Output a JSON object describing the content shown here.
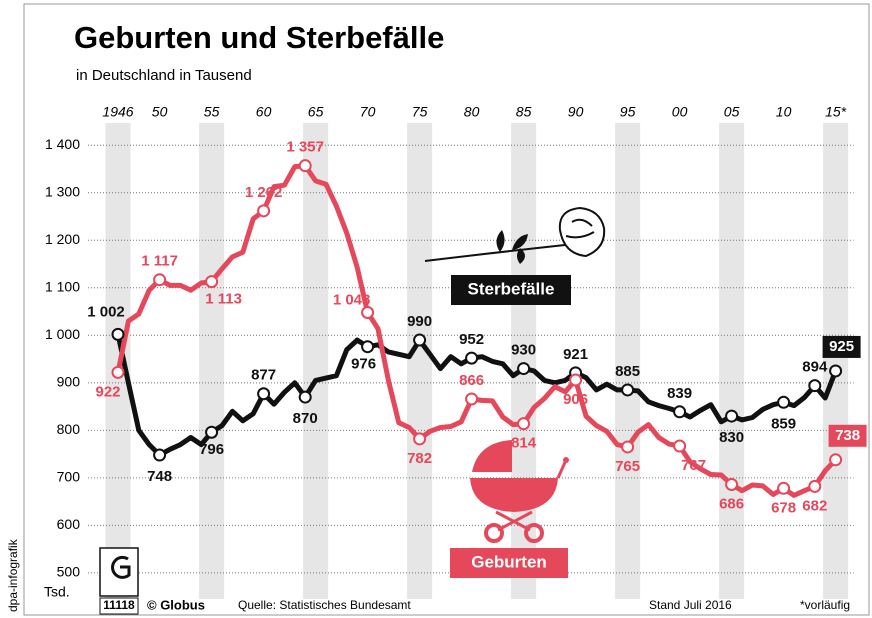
{
  "chart_data": {
    "type": "line",
    "title": "Geburten und Sterbefälle",
    "subtitle": "in Deutschland in Tausend",
    "y_unit": "Tsd.",
    "credit": "dpa-infografik",
    "graphic_number": "11118",
    "publisher": "© Globus",
    "source": "Quelle: Statistisches Bundesamt",
    "date": "Stand Juli 2016",
    "footnote": "*vorläufig",
    "x": [
      1946,
      1947,
      1948,
      1949,
      1950,
      1951,
      1952,
      1953,
      1954,
      1955,
      1956,
      1957,
      1958,
      1959,
      1960,
      1961,
      1962,
      1963,
      1964,
      1965,
      1966,
      1967,
      1968,
      1969,
      1970,
      1971,
      1972,
      1973,
      1974,
      1975,
      1976,
      1977,
      1978,
      1979,
      1980,
      1981,
      1982,
      1983,
      1984,
      1985,
      1986,
      1987,
      1988,
      1989,
      1990,
      1991,
      1992,
      1993,
      1994,
      1995,
      1996,
      1997,
      1998,
      1999,
      2000,
      2001,
      2002,
      2003,
      2004,
      2005,
      2006,
      2007,
      2008,
      2009,
      2010,
      2011,
      2012,
      2013,
      2014,
      2015
    ],
    "series": [
      {
        "name": "Sterbefälle",
        "color": "#111111",
        "values": [
          1002,
          900,
          800,
          770,
          748,
          760,
          770,
          785,
          770,
          796,
          810,
          840,
          820,
          835,
          877,
          855,
          880,
          900,
          870,
          905,
          910,
          915,
          970,
          990,
          976,
          980,
          965,
          960,
          955,
          990,
          960,
          930,
          955,
          940,
          952,
          955,
          945,
          940,
          915,
          930,
          925,
          905,
          900,
          905,
          921,
          911,
          885,
          897,
          885,
          885,
          883,
          860,
          852,
          846,
          839,
          828,
          842,
          854,
          818,
          830,
          822,
          827,
          844,
          854,
          859,
          852,
          869,
          894,
          868,
          925
        ],
        "value_labels": [
          "1 002",
          null,
          null,
          null,
          "748",
          null,
          null,
          null,
          null,
          "796",
          null,
          null,
          null,
          null,
          "877",
          null,
          null,
          null,
          "870",
          null,
          null,
          null,
          null,
          null,
          "976",
          null,
          null,
          null,
          null,
          "990",
          null,
          null,
          null,
          null,
          "952",
          null,
          null,
          null,
          null,
          "930",
          null,
          null,
          null,
          null,
          "921",
          null,
          null,
          null,
          null,
          "885",
          null,
          null,
          null,
          null,
          "839",
          null,
          null,
          null,
          null,
          "830",
          null,
          null,
          null,
          null,
          "859",
          null,
          null,
          "894",
          null,
          "925"
        ]
      },
      {
        "name": "Geburten",
        "color": "#e5485a",
        "values": [
          922,
          1030,
          1045,
          1095,
          1117,
          1105,
          1105,
          1095,
          1110,
          1113,
          1140,
          1165,
          1175,
          1245,
          1262,
          1313,
          1316,
          1355,
          1357,
          1325,
          1318,
          1272,
          1215,
          1143,
          1048,
          1014,
          905,
          816,
          806,
          782,
          798,
          806,
          808,
          818,
          866,
          863,
          862,
          828,
          812,
          814,
          848,
          867,
          892,
          881,
          906,
          830,
          810,
          798,
          770,
          765,
          796,
          812,
          785,
          771,
          767,
          734,
          719,
          707,
          706,
          686,
          673,
          685,
          683,
          665,
          678,
          663,
          673,
          682,
          715,
          738
        ],
        "value_labels": [
          "922",
          null,
          null,
          null,
          "1 117",
          null,
          null,
          null,
          null,
          "1 113",
          null,
          null,
          null,
          null,
          "1 262",
          null,
          null,
          null,
          "1 357",
          null,
          null,
          null,
          null,
          null,
          "1 048",
          null,
          null,
          null,
          null,
          "782",
          null,
          null,
          null,
          null,
          "866",
          null,
          null,
          null,
          null,
          "814",
          null,
          null,
          null,
          null,
          "906",
          null,
          null,
          null,
          null,
          "765",
          null,
          null,
          null,
          null,
          "767",
          null,
          null,
          null,
          null,
          "686",
          null,
          null,
          null,
          null,
          "678",
          null,
          null,
          "682",
          null,
          "738"
        ]
      }
    ],
    "xlim": [
      1943.5,
      2017.5
    ],
    "xticks": [
      1946,
      {
        "value": 1950,
        "label": "50"
      },
      {
        "value": 1955,
        "label": "55"
      },
      {
        "value": 1960,
        "label": "60"
      },
      {
        "value": 1965,
        "label": "65"
      },
      {
        "value": 1970,
        "label": "70"
      },
      {
        "value": 1975,
        "label": "75"
      },
      {
        "value": 1980,
        "label": "80"
      },
      {
        "value": 1985,
        "label": "85"
      },
      {
        "value": 1990,
        "label": "90"
      },
      {
        "value": 1995,
        "label": "95"
      },
      {
        "value": 2000,
        "label": "00"
      },
      {
        "value": 2005,
        "label": "05"
      },
      {
        "value": 2010,
        "label": "10"
      },
      {
        "value": 2015,
        "label": "15*"
      }
    ],
    "ylim": [
      445,
      1430
    ],
    "yticks": [
      500,
      600,
      700,
      800,
      900,
      {
        "value": 1000,
        "label": "1 000"
      },
      {
        "value": 1100,
        "label": "1 100"
      },
      {
        "value": 1200,
        "label": "1 200"
      },
      {
        "value": 1300,
        "label": "1 300"
      },
      {
        "value": 1400,
        "label": "1 400"
      }
    ],
    "grid": true
  }
}
